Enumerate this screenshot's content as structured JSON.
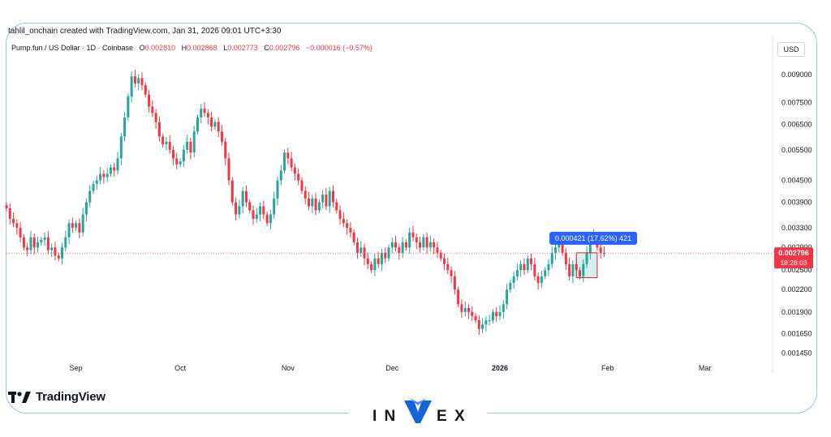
{
  "watermark_caption": "tahlil_onchain created with TradingView.com, Jan 31, 2026 09:01 UTC+3:30",
  "legend": {
    "symbol": "Pump.fun / US Dollar · 1D · Coinbase",
    "o_label": "O",
    "o_value": "0.002810",
    "h_label": "H",
    "h_value": "0.002868",
    "l_label": "L",
    "l_value": "0.002773",
    "c_label": "C",
    "c_value": "0.002796",
    "change": "−0.000016 (−0.57%)"
  },
  "currency": "USD",
  "current_price": "0.002796",
  "countdown": "18:28:03",
  "measure_label": "0.000421 (17.62%) 421",
  "brand": {
    "tradingview": "TradingView",
    "invex": "INVEX"
  },
  "colors": {
    "up": "#26a69a",
    "down": "#f23645",
    "measure": "#2962ff",
    "frame": "#9ec3e6"
  },
  "chart_data": {
    "type": "candlestick",
    "title": "",
    "xlabel": "",
    "ylabel": "",
    "y_scale": "log",
    "ylim": [
      0.00138,
      0.0097
    ],
    "y_ticks": [
      "0.009000",
      "0.007500",
      "0.006500",
      "0.005500",
      "0.004500",
      "0.003900",
      "0.003300",
      "0.002900",
      "0.002500",
      "0.002200",
      "0.001900",
      "0.001650",
      "0.001450"
    ],
    "x_ticks": [
      {
        "label": "Sep",
        "date": "2025-09-01"
      },
      {
        "label": "Oct",
        "date": "2025-10-01"
      },
      {
        "label": "Nov",
        "date": "2025-11-01"
      },
      {
        "label": "Dec",
        "date": "2025-12-01"
      },
      {
        "label": "2026",
        "date": "2026-01-01"
      },
      {
        "label": "Feb",
        "date": "2026-02-01"
      },
      {
        "label": "Mar",
        "date": "2026-03-01"
      }
    ],
    "x_range": [
      "2025-08-12",
      "2026-03-20"
    ],
    "series": [
      {
        "start_date": "2025-08-12",
        "interval": "1D",
        "close": [
          0.00375,
          0.0035,
          0.0034,
          0.0033,
          0.0031,
          0.0029,
          0.00285,
          0.0031,
          0.0029,
          0.003,
          0.00305,
          0.0031,
          0.00285,
          0.0029,
          0.00275,
          0.0027,
          0.0029,
          0.0031,
          0.0034,
          0.0033,
          0.0034,
          0.0032,
          0.0036,
          0.0039,
          0.0042,
          0.0044,
          0.0045,
          0.0047,
          0.0046,
          0.0047,
          0.0049,
          0.0048,
          0.0052,
          0.006,
          0.0068,
          0.0078,
          0.0089,
          0.0085,
          0.0088,
          0.0084,
          0.0079,
          0.0073,
          0.007,
          0.0066,
          0.006,
          0.0057,
          0.0058,
          0.0055,
          0.0052,
          0.005,
          0.0051,
          0.0055,
          0.0058,
          0.0054,
          0.0062,
          0.0068,
          0.0072,
          0.007,
          0.0068,
          0.0064,
          0.0066,
          0.0062,
          0.0058,
          0.0052,
          0.0045,
          0.0039,
          0.0036,
          0.0038,
          0.0042,
          0.0039,
          0.0037,
          0.0035,
          0.0036,
          0.0038,
          0.0036,
          0.0034,
          0.0036,
          0.004,
          0.0045,
          0.0048,
          0.0054,
          0.0052,
          0.0049,
          0.0047,
          0.0045,
          0.0042,
          0.004,
          0.0038,
          0.004,
          0.0037,
          0.0039,
          0.0041,
          0.0038,
          0.0042,
          0.0039,
          0.0037,
          0.0035,
          0.0034,
          0.0033,
          0.0032,
          0.003,
          0.0028,
          0.0029,
          0.0027,
          0.0026,
          0.0025,
          0.0027,
          0.0026,
          0.0028,
          0.0027,
          0.0029,
          0.003,
          0.0029,
          0.0028,
          0.003,
          0.0029,
          0.0032,
          0.0031,
          0.003,
          0.0029,
          0.0031,
          0.0029,
          0.003,
          0.0029,
          0.0028,
          0.0027,
          0.0026,
          0.0025,
          0.0024,
          0.0022,
          0.002,
          0.0019,
          0.00195,
          0.0019,
          0.00185,
          0.0018,
          0.0017,
          0.00175,
          0.0018,
          0.0018,
          0.0019,
          0.00185,
          0.0019,
          0.002,
          0.0022,
          0.0023,
          0.0024,
          0.0025,
          0.0026,
          0.0025,
          0.0027,
          0.0026,
          0.0024,
          0.0023,
          0.0024,
          0.0025,
          0.0026,
          0.0028,
          0.0029,
          0.0031,
          0.0028,
          0.0026,
          0.0024,
          0.0026,
          0.0025,
          0.0024,
          0.0026,
          0.0028,
          0.0031,
          0.00315,
          0.0029,
          0.0028,
          0.002796
        ]
      }
    ],
    "current_price": 0.002796,
    "measure_box": {
      "from_date": "2026-01-23",
      "to_date": "2026-01-29",
      "low": 0.00238,
      "high": 0.0028,
      "change": 0.000421,
      "pct": 17.62
    }
  }
}
